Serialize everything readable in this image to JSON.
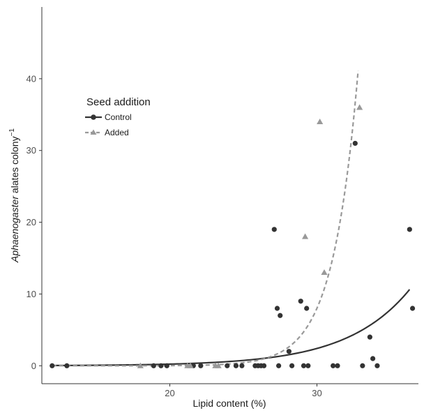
{
  "chart_data": {
    "type": "scatter",
    "title": "",
    "xlabel": "Lipid content (%)",
    "ylabel": {
      "italic": "Aphaenogaster",
      "rest": " alates colony",
      "superscript": "−1"
    },
    "xlim": [
      11.3,
      36.9
    ],
    "ylim": [
      -2.5,
      50
    ],
    "x_ticks": [
      20,
      30
    ],
    "y_ticks": [
      0,
      10,
      20,
      30,
      40
    ],
    "x_tick_labels": [
      "20",
      "30"
    ],
    "y_tick_labels": [
      "0",
      "10",
      "20",
      "30",
      "40"
    ],
    "grid": false,
    "legend": {
      "title": "Seed addition",
      "position": "top-left"
    },
    "series": [
      {
        "name": "Control",
        "marker": "circle",
        "line": "solid",
        "color": "#333333",
        "fit_curve": {
          "form": "exponential",
          "a": 0.00206,
          "b": 0.2355
        },
        "points": [
          {
            "x": 12.0,
            "y": 0
          },
          {
            "x": 13.0,
            "y": 0
          },
          {
            "x": 18.9,
            "y": 0
          },
          {
            "x": 19.4,
            "y": 0
          },
          {
            "x": 19.8,
            "y": 0
          },
          {
            "x": 21.6,
            "y": 0
          },
          {
            "x": 22.1,
            "y": 0
          },
          {
            "x": 23.9,
            "y": 0
          },
          {
            "x": 24.5,
            "y": 0
          },
          {
            "x": 24.9,
            "y": 0
          },
          {
            "x": 25.8,
            "y": 0
          },
          {
            "x": 26.0,
            "y": 0
          },
          {
            "x": 26.2,
            "y": 0
          },
          {
            "x": 26.4,
            "y": 0
          },
          {
            "x": 27.1,
            "y": 19
          },
          {
            "x": 27.3,
            "y": 8
          },
          {
            "x": 27.4,
            "y": 0
          },
          {
            "x": 27.5,
            "y": 7
          },
          {
            "x": 28.1,
            "y": 2
          },
          {
            "x": 28.3,
            "y": 0
          },
          {
            "x": 28.9,
            "y": 9
          },
          {
            "x": 29.1,
            "y": 0
          },
          {
            "x": 29.3,
            "y": 8
          },
          {
            "x": 29.4,
            "y": 0
          },
          {
            "x": 31.1,
            "y": 0
          },
          {
            "x": 31.4,
            "y": 0
          },
          {
            "x": 32.6,
            "y": 31
          },
          {
            "x": 33.1,
            "y": 0
          },
          {
            "x": 33.6,
            "y": 4
          },
          {
            "x": 33.8,
            "y": 1
          },
          {
            "x": 34.1,
            "y": 0
          },
          {
            "x": 36.3,
            "y": 19
          },
          {
            "x": 36.5,
            "y": 8
          }
        ]
      },
      {
        "name": "Added",
        "marker": "triangle",
        "line": "dashed",
        "color": "#999999",
        "fit_curve": {
          "form": "exponential",
          "a": 1.94e-07,
          "b": 0.5845
        },
        "points": [
          {
            "x": 18.0,
            "y": 0
          },
          {
            "x": 21.2,
            "y": 0
          },
          {
            "x": 21.4,
            "y": 0
          },
          {
            "x": 23.1,
            "y": 0
          },
          {
            "x": 23.3,
            "y": 0
          },
          {
            "x": 29.2,
            "y": 18
          },
          {
            "x": 30.2,
            "y": 34
          },
          {
            "x": 30.5,
            "y": 13
          },
          {
            "x": 32.9,
            "y": 36
          }
        ]
      }
    ],
    "fit_range": [
      12.0,
      36.3
    ],
    "added_fit_range": [
      12.0,
      32.8
    ]
  }
}
